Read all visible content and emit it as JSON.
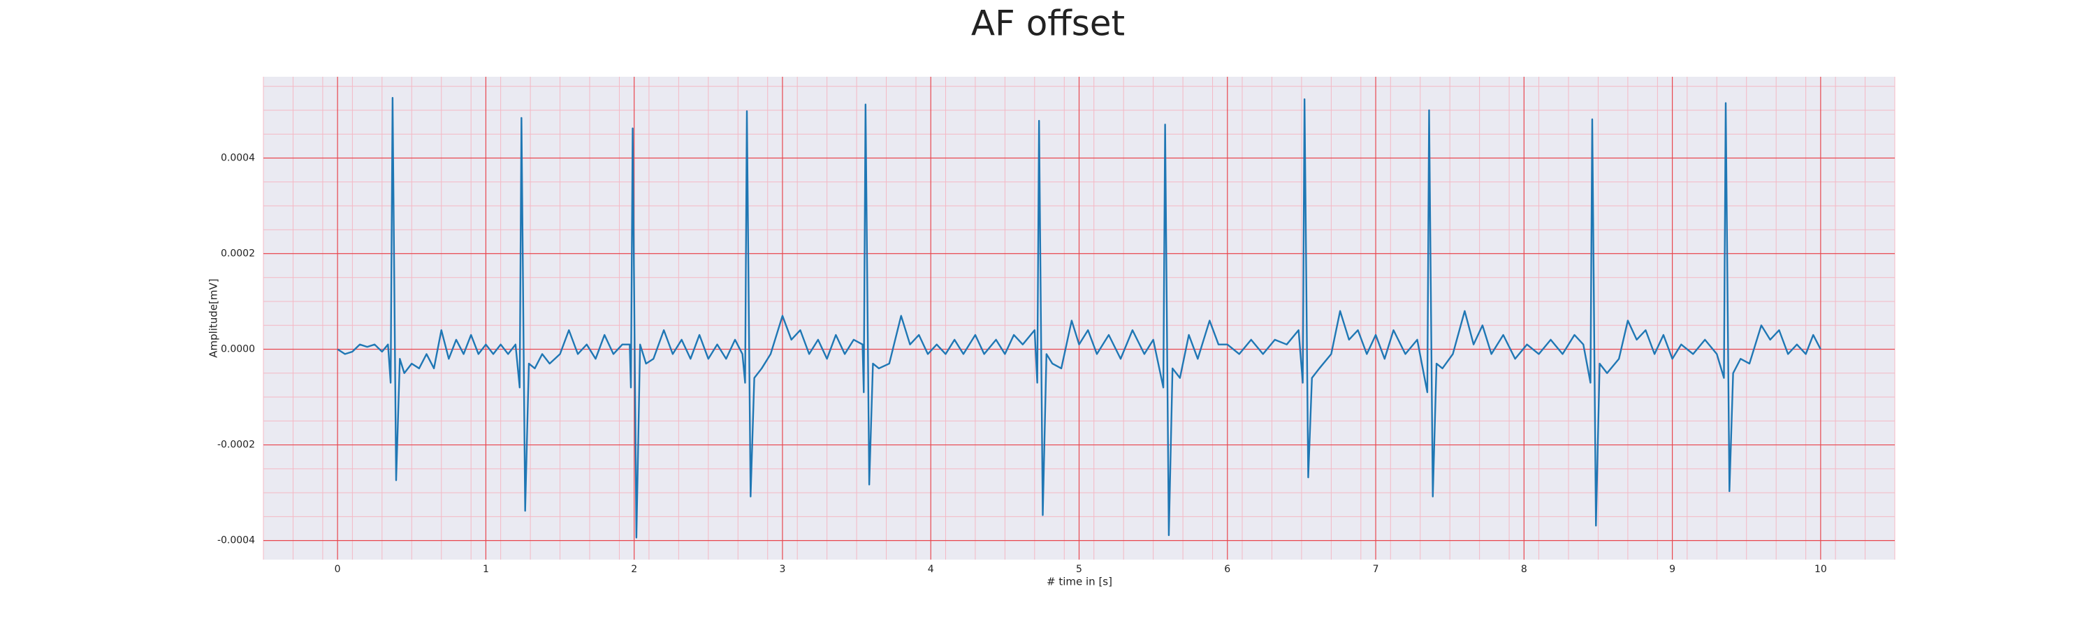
{
  "chart_data": {
    "type": "line",
    "title": "AF offset",
    "xlabel": "# time in [s]",
    "ylabel": "Amplitude[mV]",
    "color": "#1f77b4",
    "grid": true,
    "minor_grid": true,
    "xlim": [
      -0.5,
      10.5
    ],
    "xticks": [
      0,
      1,
      2,
      3,
      4,
      5,
      6,
      7,
      8,
      9,
      10
    ],
    "ylim": [
      -0.00044,
      0.00057
    ],
    "yticks": [
      {
        "value": -0.0004,
        "label": "-0.0004"
      },
      {
        "value": -0.0002,
        "label": "-0.0002"
      },
      {
        "value": 0,
        "label": "0.0000"
      },
      {
        "value": 0.0002,
        "label": "0.0002"
      },
      {
        "value": 0.0004,
        "label": "0.0004"
      }
    ],
    "x": [
      0,
      0.05,
      0.1,
      0.15,
      0.2,
      0.25,
      0.3,
      0.34,
      0.358,
      0.371,
      0.395,
      0.42,
      0.45,
      0.5,
      0.55,
      0.6,
      0.65,
      0.7,
      0.75,
      0.8,
      0.85,
      0.9,
      0.95,
      1.0,
      1.05,
      1.1,
      1.15,
      1.2,
      1.228,
      1.24,
      1.265,
      1.29,
      1.33,
      1.38,
      1.43,
      1.5,
      1.56,
      1.62,
      1.68,
      1.74,
      1.8,
      1.86,
      1.92,
      1.97,
      1.978,
      1.99,
      2.015,
      2.04,
      2.08,
      2.13,
      2.2,
      2.26,
      2.32,
      2.38,
      2.44,
      2.5,
      2.56,
      2.62,
      2.68,
      2.73,
      2.748,
      2.76,
      2.785,
      2.81,
      2.86,
      2.92,
      3.0,
      3.06,
      3.12,
      3.18,
      3.24,
      3.3,
      3.36,
      3.42,
      3.48,
      3.54,
      3.548,
      3.56,
      3.585,
      3.61,
      3.65,
      3.72,
      3.8,
      3.86,
      3.92,
      3.98,
      4.04,
      4.1,
      4.16,
      4.22,
      4.3,
      4.36,
      4.44,
      4.5,
      4.56,
      4.62,
      4.7,
      4.718,
      4.73,
      4.755,
      4.78,
      4.82,
      4.88,
      4.95,
      5.0,
      5.06,
      5.12,
      5.2,
      5.28,
      5.36,
      5.44,
      5.5,
      5.568,
      5.58,
      5.605,
      5.63,
      5.68,
      5.74,
      5.8,
      5.88,
      5.94,
      6.0,
      6.08,
      6.16,
      6.24,
      6.32,
      6.4,
      6.48,
      6.508,
      6.52,
      6.545,
      6.57,
      6.62,
      6.7,
      6.76,
      6.82,
      6.88,
      6.94,
      7.0,
      7.06,
      7.12,
      7.2,
      7.28,
      7.348,
      7.36,
      7.385,
      7.41,
      7.45,
      7.52,
      7.6,
      7.66,
      7.72,
      7.78,
      7.86,
      7.94,
      8.02,
      8.1,
      8.18,
      8.26,
      8.34,
      8.4,
      8.448,
      8.46,
      8.485,
      8.51,
      8.56,
      8.64,
      8.7,
      8.76,
      8.82,
      8.88,
      8.94,
      9.0,
      9.06,
      9.14,
      9.22,
      9.3,
      9.348,
      9.36,
      9.385,
      9.41,
      9.46,
      9.52,
      9.6,
      9.66,
      9.72,
      9.78,
      9.84,
      9.9,
      9.95,
      10.0
    ],
    "values": [
      0,
      -1e-05,
      -5e-06,
      1e-05,
      5e-06,
      1e-05,
      -5e-06,
      1e-05,
      -7e-05,
      0.000526,
      -0.000274,
      -2e-05,
      -5e-05,
      -3e-05,
      -4e-05,
      -1e-05,
      -4e-05,
      4e-05,
      -2e-05,
      2e-05,
      -1e-05,
      3e-05,
      -1e-05,
      1e-05,
      -1e-05,
      1e-05,
      -1e-05,
      1e-05,
      -8e-05,
      0.000484,
      -0.000338,
      -3e-05,
      -4e-05,
      -1e-05,
      -3e-05,
      -1e-05,
      4e-05,
      -1e-05,
      1e-05,
      -2e-05,
      3e-05,
      -1e-05,
      1e-05,
      1e-05,
      -8e-05,
      0.000462,
      -0.000394,
      1e-05,
      -3e-05,
      -2e-05,
      4e-05,
      -1e-05,
      2e-05,
      -2e-05,
      3e-05,
      -2e-05,
      1e-05,
      -2e-05,
      2e-05,
      -1e-05,
      -7e-05,
      0.000498,
      -0.000308,
      -6e-05,
      -4e-05,
      -1e-05,
      7e-05,
      2e-05,
      4e-05,
      -1e-05,
      2e-05,
      -2e-05,
      3e-05,
      -1e-05,
      2e-05,
      1e-05,
      -9e-05,
      0.000512,
      -0.000283,
      -3e-05,
      -4e-05,
      -3e-05,
      7e-05,
      1e-05,
      3e-05,
      -1e-05,
      1e-05,
      -1e-05,
      2e-05,
      -1e-05,
      3e-05,
      -1e-05,
      2e-05,
      -1e-05,
      3e-05,
      1e-05,
      4e-05,
      -7e-05,
      0.000478,
      -0.000347,
      -1e-05,
      -3e-05,
      -4e-05,
      6e-05,
      1e-05,
      4e-05,
      -1e-05,
      3e-05,
      -2e-05,
      4e-05,
      -1e-05,
      2e-05,
      -8e-05,
      0.00047,
      -0.000389,
      -4e-05,
      -6e-05,
      3e-05,
      -2e-05,
      6e-05,
      1e-05,
      1e-05,
      -1e-05,
      2e-05,
      -1e-05,
      2e-05,
      1e-05,
      4e-05,
      -7e-05,
      0.000523,
      -0.000268,
      -6e-05,
      -4e-05,
      -1e-05,
      8e-05,
      2e-05,
      4e-05,
      -1e-05,
      3e-05,
      -2e-05,
      4e-05,
      -1e-05,
      2e-05,
      -9e-05,
      0.0005,
      -0.000308,
      -3e-05,
      -4e-05,
      -1e-05,
      8e-05,
      1e-05,
      5e-05,
      -1e-05,
      3e-05,
      -2e-05,
      1e-05,
      -1e-05,
      2e-05,
      -1e-05,
      3e-05,
      1e-05,
      -7e-05,
      0.000481,
      -0.000369,
      -3e-05,
      -5e-05,
      -2e-05,
      6e-05,
      2e-05,
      4e-05,
      -1e-05,
      3e-05,
      -2e-05,
      1e-05,
      -1e-05,
      2e-05,
      -1e-05,
      -6e-05,
      0.000515,
      -0.000297,
      -5e-05,
      -2e-05,
      -3e-05,
      5e-05,
      2e-05,
      4e-05,
      -1e-05,
      1e-05,
      -1e-05,
      3e-05,
      0
    ]
  }
}
